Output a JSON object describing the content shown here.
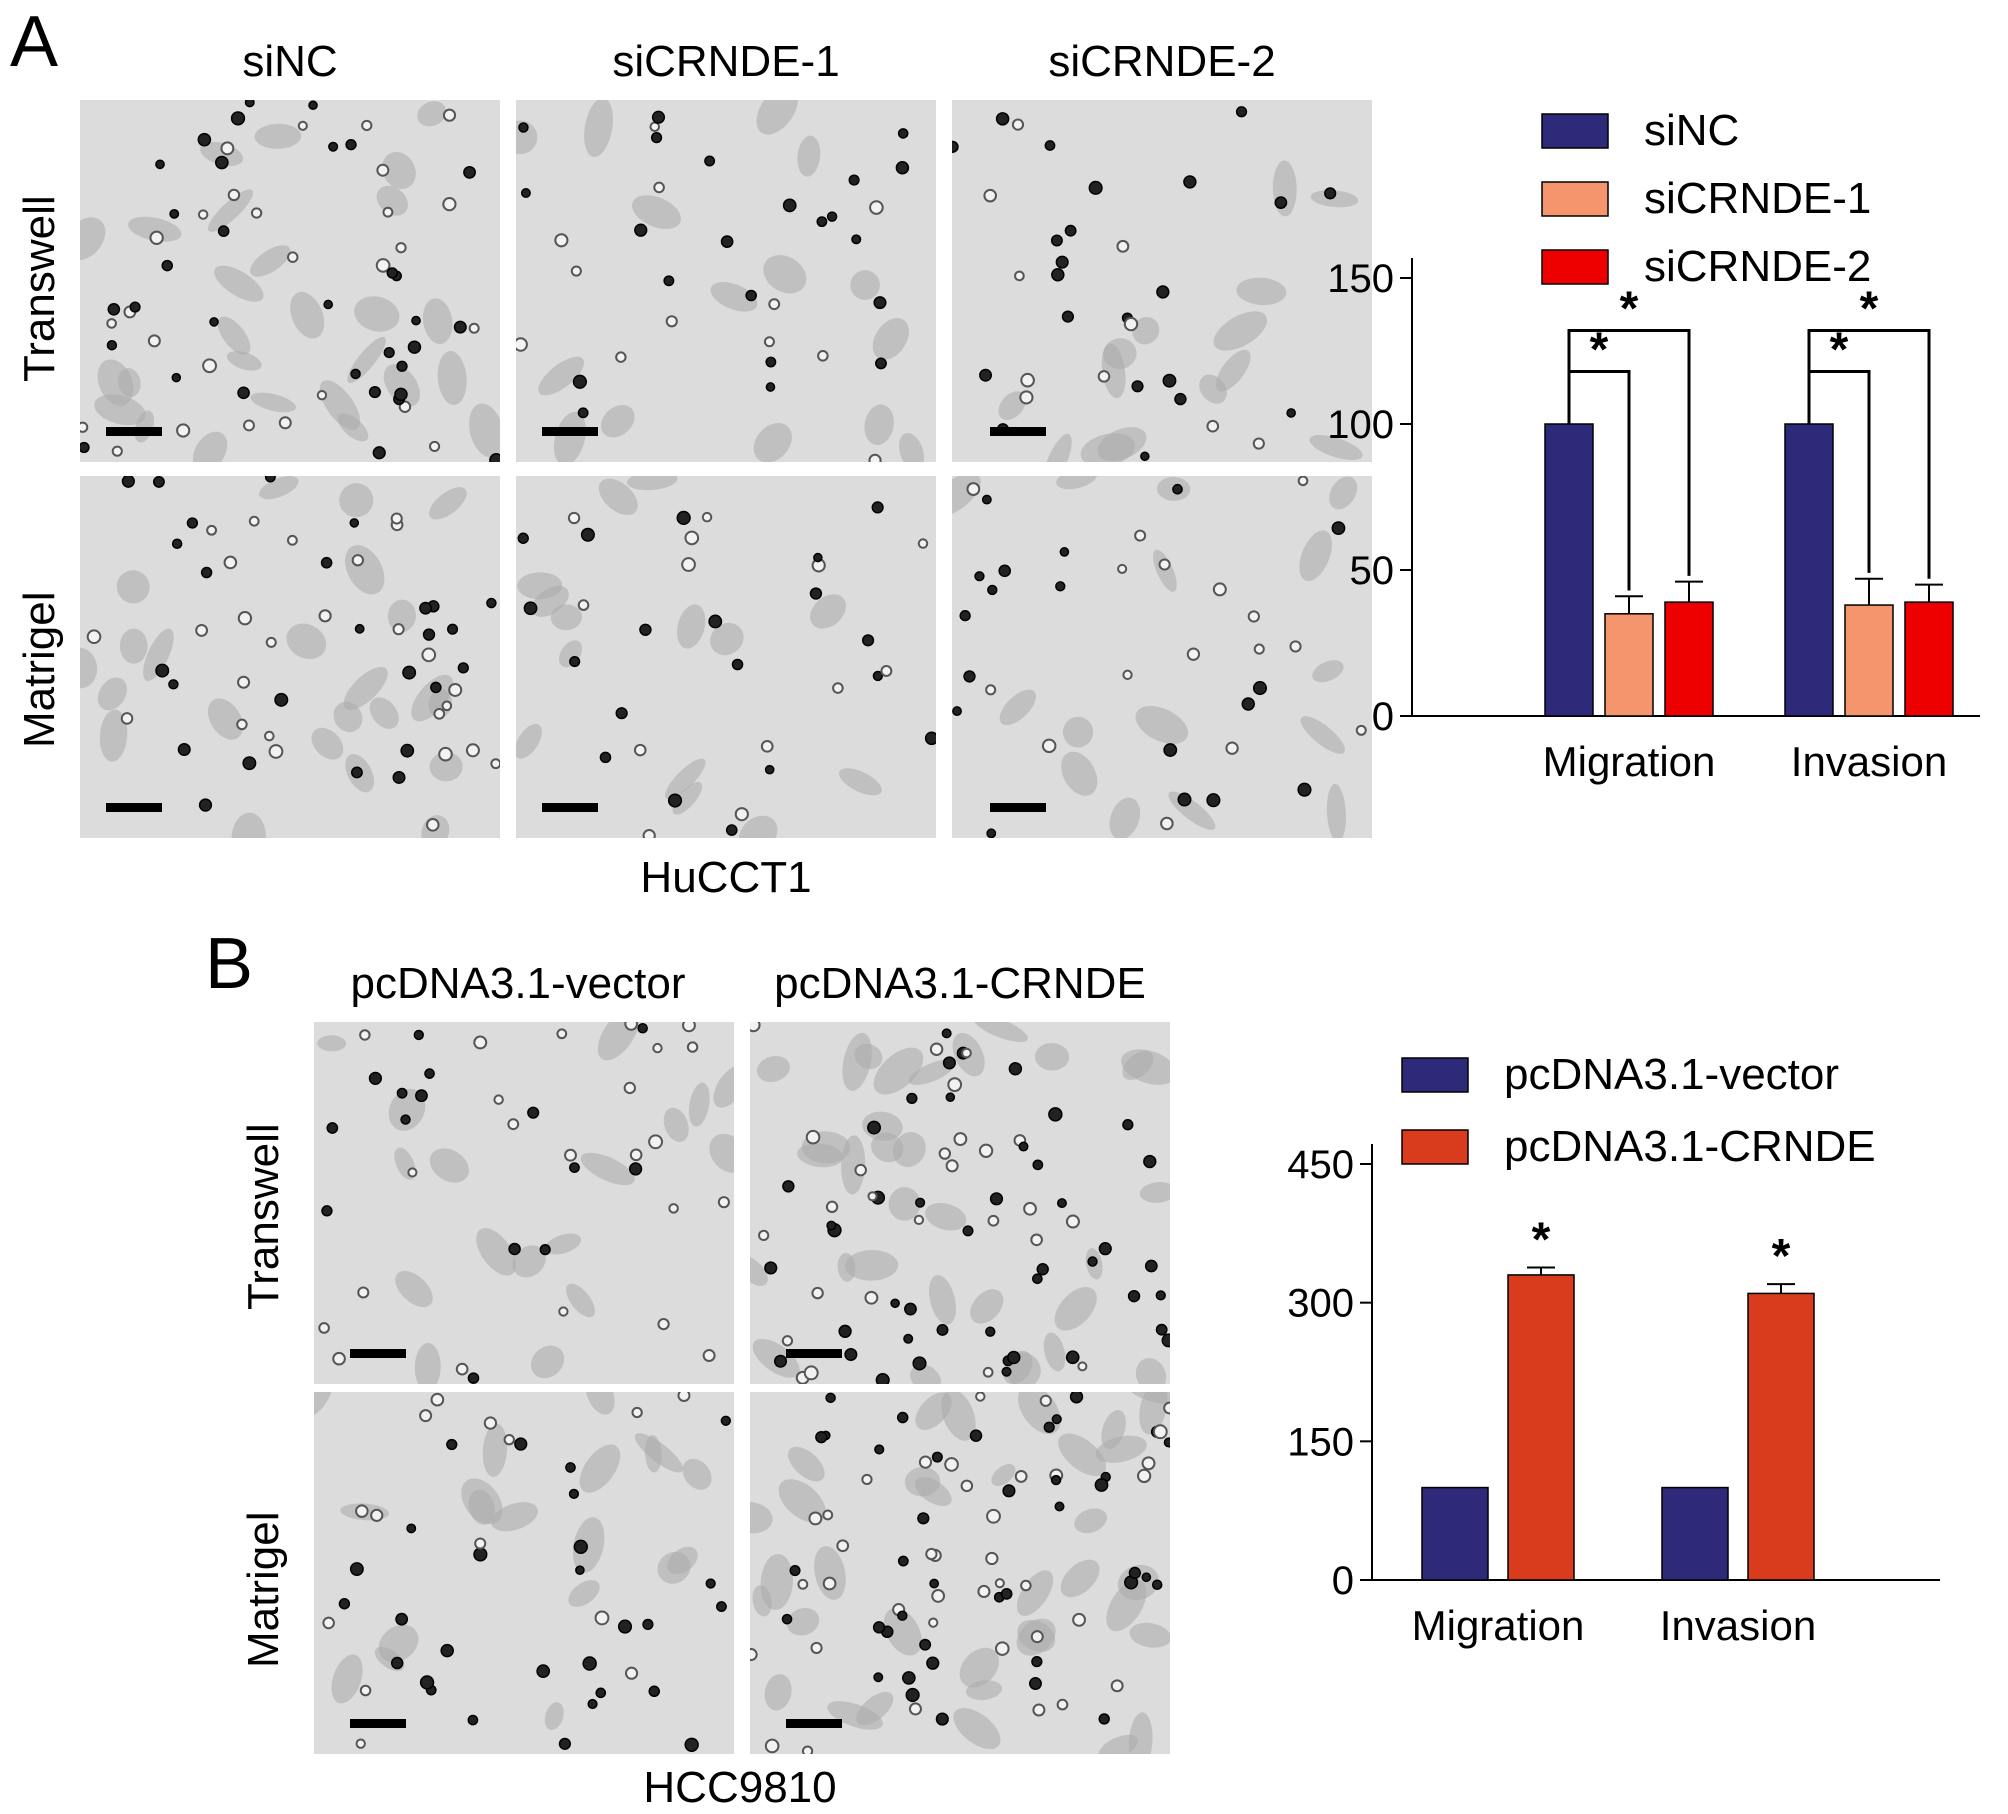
{
  "panel_a": {
    "letter": "A",
    "columns": [
      "siNC",
      "siCRNDE-1",
      "siCRNDE-2"
    ],
    "rows": [
      "Transwell",
      "Matrigel"
    ],
    "cell_line": "HuCCT1"
  },
  "panel_b": {
    "letter": "B",
    "columns": [
      "pcDNA3.1-vector",
      "pcDNA3.1-CRNDE"
    ],
    "rows": [
      "Transwell",
      "Matrigel"
    ],
    "cell_line": "HCC9810"
  },
  "chart_data": [
    {
      "type": "bar",
      "categories": [
        "Migration",
        "Invasion"
      ],
      "series": [
        {
          "name": "siNC",
          "color": "#2e2a7a",
          "values": [
            100,
            100
          ],
          "errors": [
            0,
            0
          ]
        },
        {
          "name": "siCRNDE-1",
          "color": "#f4956e",
          "values": [
            35,
            38
          ],
          "errors": [
            6,
            9
          ]
        },
        {
          "name": "siCRNDE-2",
          "color": "#ee0000",
          "values": [
            39,
            39
          ],
          "errors": [
            7,
            6
          ]
        }
      ],
      "ylim": [
        0,
        150
      ],
      "yticks": [
        0,
        50,
        100,
        150
      ],
      "xlabel": "",
      "ylabel": "",
      "significance": "*",
      "legend": "top"
    },
    {
      "type": "bar",
      "categories": [
        "Migration",
        "Invasion"
      ],
      "series": [
        {
          "name": "pcDNA3.1-vector",
          "color": "#2e2a7a",
          "values": [
            100,
            100
          ],
          "errors": [
            0,
            0
          ]
        },
        {
          "name": "pcDNA3.1-CRNDE",
          "color": "#d83c1c",
          "values": [
            330,
            310
          ],
          "errors": [
            8,
            10
          ]
        }
      ],
      "ylim": [
        0,
        450
      ],
      "yticks": [
        0,
        150,
        300,
        450
      ],
      "xlabel": "",
      "ylabel": "",
      "significance": "*",
      "legend": "top"
    }
  ]
}
